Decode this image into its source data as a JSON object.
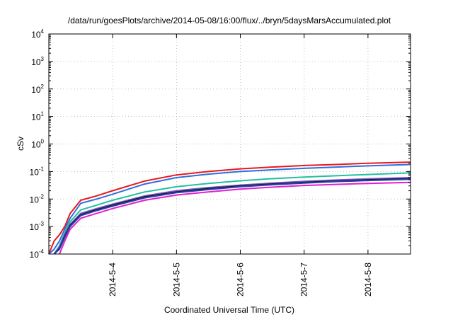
{
  "chart_data": {
    "type": "line",
    "title": "/data/run/goesPlots/archive/2014-05-08/16:00/flux/../bryn/5daysMarsAccumulated.plot",
    "xlabel": "Coordinated Universal Time (UTC)",
    "ylabel": "cSv",
    "y_scale": "log",
    "ylim": [
      0.0001,
      10000
    ],
    "xlim": [
      "2014-05-03T00:00",
      "2014-05-08T16:00"
    ],
    "grid": true,
    "x_ticks": [
      "2014-5-4",
      "2014-5-5",
      "2014-5-6",
      "2014-5-7",
      "2014-5-8"
    ],
    "y_ticks": [
      {
        "base": "10",
        "exp": "-4"
      },
      {
        "base": "10",
        "exp": "-3"
      },
      {
        "base": "10",
        "exp": "-2"
      },
      {
        "base": "10",
        "exp": "-1"
      },
      {
        "base": "10",
        "exp": "0"
      },
      {
        "base": "10",
        "exp": "1"
      },
      {
        "base": "10",
        "exp": "2"
      },
      {
        "base": "10",
        "exp": "3"
      },
      {
        "base": "10",
        "exp": "4"
      }
    ],
    "x": [
      "2014-05-03T00:00",
      "2014-05-03T02:00",
      "2014-05-03T04:00",
      "2014-05-03T06:00",
      "2014-05-03T08:00",
      "2014-05-03T12:00",
      "2014-05-03T18:00",
      "2014-05-04T00:00",
      "2014-05-04T12:00",
      "2014-05-05T00:00",
      "2014-05-05T12:00",
      "2014-05-06T00:00",
      "2014-05-06T12:00",
      "2014-05-07T00:00",
      "2014-05-07T12:00",
      "2014-05-08T00:00",
      "2014-05-08T16:00"
    ],
    "series": [
      {
        "color": "#e8191d",
        "values": [
          0.0001,
          0.0003,
          0.0005,
          0.001,
          0.003,
          0.009,
          0.013,
          0.02,
          0.045,
          0.075,
          0.1,
          0.125,
          0.145,
          0.165,
          0.18,
          0.2,
          0.22
        ]
      },
      {
        "color": "#2d6fe0",
        "values": [
          0.0001,
          0.00015,
          0.0003,
          0.0008,
          0.002,
          0.007,
          0.01,
          0.015,
          0.035,
          0.06,
          0.08,
          0.1,
          0.115,
          0.13,
          0.145,
          0.16,
          0.18
        ]
      },
      {
        "color": "#22c0a0",
        "values": [
          null,
          0.0001,
          0.0002,
          0.0006,
          0.0015,
          0.004,
          0.006,
          0.009,
          0.018,
          0.028,
          0.037,
          0.046,
          0.055,
          0.063,
          0.07,
          0.078,
          0.09
        ]
      },
      {
        "color": "#7b57c8",
        "values": [
          null,
          0.0001,
          0.00018,
          0.0005,
          0.0012,
          0.003,
          0.0045,
          0.0065,
          0.013,
          0.02,
          0.026,
          0.032,
          0.038,
          0.044,
          0.049,
          0.054,
          0.06
        ]
      },
      {
        "color": "#1c1c2e",
        "values": [
          null,
          0.0001,
          0.00016,
          0.00045,
          0.0011,
          0.0027,
          0.0041,
          0.006,
          0.012,
          0.018,
          0.024,
          0.03,
          0.035,
          0.04,
          0.045,
          0.05,
          0.055
        ]
      },
      {
        "color": "#2b3fb0",
        "values": [
          null,
          0.0001,
          0.00015,
          0.0004,
          0.001,
          0.0025,
          0.0038,
          0.0055,
          0.011,
          0.017,
          0.022,
          0.028,
          0.033,
          0.038,
          0.043,
          0.047,
          0.052
        ]
      },
      {
        "color": "#e020d0",
        "values": [
          null,
          null,
          0.0001,
          0.0003,
          0.0008,
          0.002,
          0.003,
          0.0045,
          0.009,
          0.014,
          0.018,
          0.023,
          0.027,
          0.031,
          0.034,
          0.037,
          0.04
        ]
      }
    ]
  }
}
